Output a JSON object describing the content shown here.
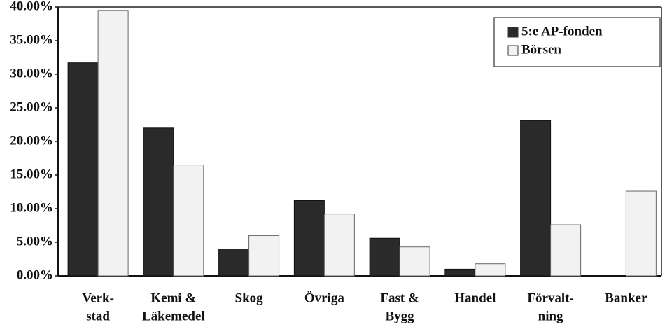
{
  "chart_data": {
    "type": "bar",
    "categories": [
      [
        "Verk-",
        "stad"
      ],
      [
        "Kemi &",
        "Läkemedel"
      ],
      [
        "Skog"
      ],
      [
        "Övriga"
      ],
      [
        "Fast &",
        "Bygg"
      ],
      [
        "Handel"
      ],
      [
        "Förvalt-",
        "ning"
      ],
      [
        "Banker"
      ]
    ],
    "series": [
      {
        "name": "5:e AP-fonden",
        "color": "#2a2a2a",
        "values": [
          31.7,
          22,
          4,
          11.2,
          5.6,
          1.0,
          23.1,
          0
        ]
      },
      {
        "name": "Börsen",
        "color": "#f2f2f2",
        "values": [
          39.5,
          16.5,
          6.0,
          9.2,
          4.3,
          1.8,
          7.6,
          12.6
        ]
      }
    ],
    "ylim": [
      0,
      40
    ],
    "yticks": [
      {
        "value": 0,
        "label": "0.00%"
      },
      {
        "value": 5,
        "label": "5.00%"
      },
      {
        "value": 10,
        "label": "10.00%"
      },
      {
        "value": 15,
        "label": "15.00%"
      },
      {
        "value": 20,
        "label": "20.00%"
      },
      {
        "value": 25,
        "label": "25.00%"
      },
      {
        "value": 30,
        "label": "30.00%"
      },
      {
        "value": 35,
        "label": "35.00%"
      },
      {
        "value": 40,
        "label": "40.00%"
      }
    ],
    "legend": "top-right"
  }
}
